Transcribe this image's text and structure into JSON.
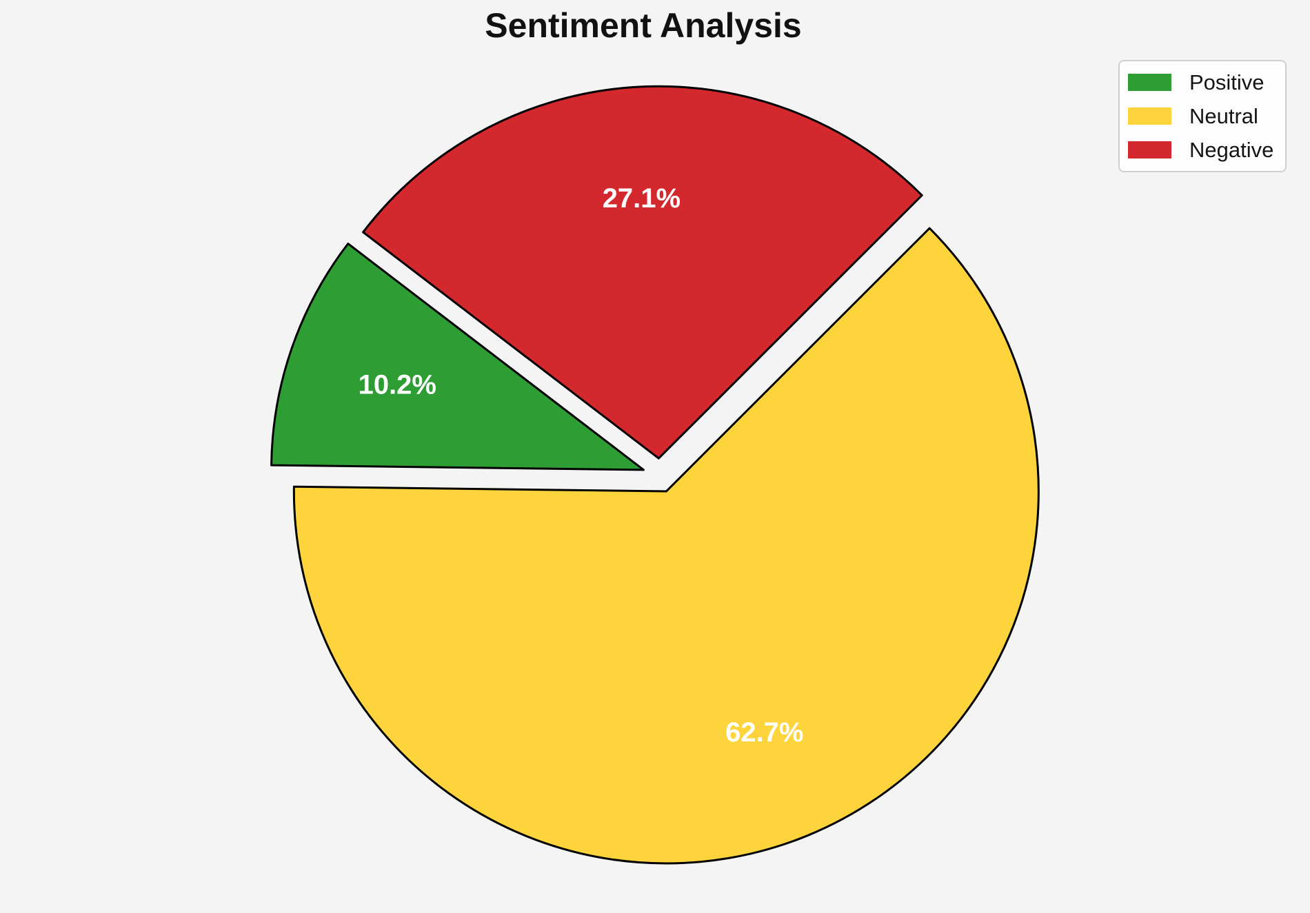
{
  "chart_data": {
    "type": "pie",
    "title": "Sentiment Analysis",
    "slices": [
      {
        "label": "Positive",
        "value": 10.2,
        "pct_label": "10.2%",
        "color": "#2e9e34"
      },
      {
        "label": "Neutral",
        "value": 62.7,
        "pct_label": "62.7%",
        "color": "#fdd43b"
      },
      {
        "label": "Negative",
        "value": 27.1,
        "pct_label": "27.1%",
        "color": "#d3292e"
      }
    ],
    "start_angle_deg": 142.56,
    "direction": "counterclockwise",
    "explode_fraction": 0.046,
    "pct_label_distance": 0.7,
    "pct_label_color": "#ffffff",
    "edge_color": "#000000",
    "legend_position": "upper right",
    "background_color": "#f4f4f5"
  }
}
